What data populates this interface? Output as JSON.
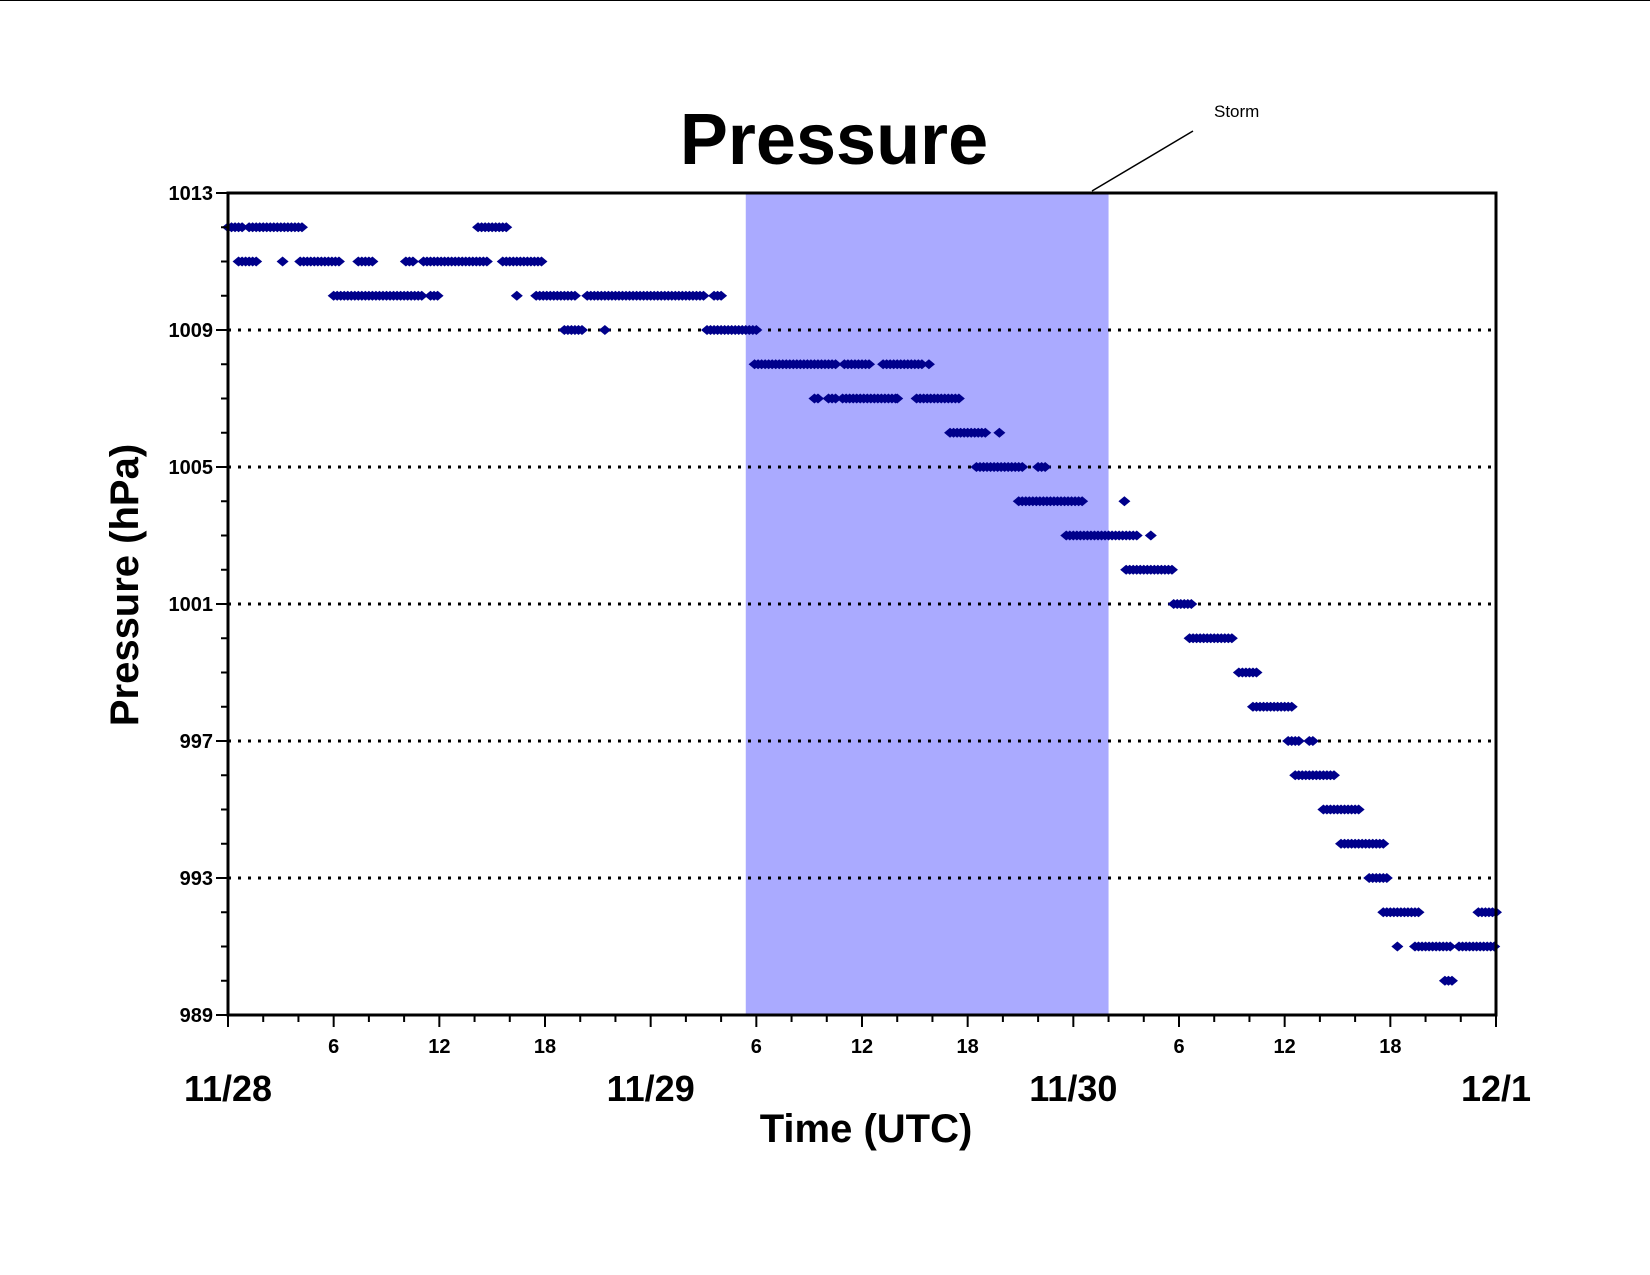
{
  "chart_data": {
    "type": "scatter",
    "title": "Pressure",
    "xlabel": "Time (UTC)",
    "ylabel": "Pressure (hPa)",
    "ylim": [
      989,
      1013
    ],
    "y_ticks": [
      "1013",
      "1009",
      "1005",
      "1001",
      "997",
      "993",
      "989"
    ],
    "xlim_hours": [
      0,
      72
    ],
    "x_hour_ticks": [
      {
        "h": 6,
        "label": "6"
      },
      {
        "h": 12,
        "label": "12"
      },
      {
        "h": 18,
        "label": "18"
      },
      {
        "h": 30,
        "label": "6"
      },
      {
        "h": 36,
        "label": "12"
      },
      {
        "h": 42,
        "label": "18"
      },
      {
        "h": 54,
        "label": "6"
      },
      {
        "h": 60,
        "label": "12"
      },
      {
        "h": 66,
        "label": "18"
      }
    ],
    "x_date_ticks": [
      {
        "h": 0,
        "label": "11/28"
      },
      {
        "h": 24,
        "label": "11/29"
      },
      {
        "h": 48,
        "label": "11/30"
      },
      {
        "h": 72,
        "label": "12/1"
      }
    ],
    "grid": "horizontal dotted",
    "marker_color": "#00008B",
    "highlight": {
      "label": "Storm",
      "start_hour": 29.4,
      "end_hour": 50.0,
      "color": "#AAAAFF"
    },
    "series": [
      {
        "segments": [
          {
            "y": 1012,
            "ranges": [
              [
                0,
                0.8
              ],
              [
                1.2,
                4.3
              ],
              [
                14.2,
                15.9
              ]
            ]
          },
          {
            "y": 1011,
            "ranges": [
              [
                0.6,
                1.7
              ],
              [
                3.1,
                3.1
              ],
              [
                4.1,
                6.3
              ],
              [
                7.4,
                8.2
              ],
              [
                10.1,
                10.5
              ],
              [
                11.1,
                14.7
              ],
              [
                15.6,
                17.8
              ]
            ]
          },
          {
            "y": 1010,
            "ranges": [
              [
                6.0,
                11.1
              ],
              [
                11.5,
                11.9
              ],
              [
                16.4,
                16.4
              ],
              [
                17.5,
                19.8
              ],
              [
                20.4,
                27.1
              ],
              [
                27.6,
                28.1
              ]
            ]
          },
          {
            "y": 1009,
            "ranges": [
              [
                19.1,
                20.1
              ],
              [
                21.4,
                21.4
              ],
              [
                27.2,
                30.1
              ]
            ]
          },
          {
            "y": 1008,
            "ranges": [
              [
                29.9,
                34.5
              ],
              [
                35.0,
                36.4
              ],
              [
                37.2,
                39.5
              ],
              [
                39.8,
                39.9
              ]
            ]
          },
          {
            "y": 1007,
            "ranges": [
              [
                33.3,
                33.6
              ],
              [
                34.1,
                34.5
              ],
              [
                34.9,
                37.9
              ],
              [
                38.0,
                38.0
              ],
              [
                39.1,
                41.6
              ]
            ]
          },
          {
            "y": 1006,
            "ranges": [
              [
                41.0,
                43.0
              ],
              [
                43.8,
                43.8
              ]
            ]
          },
          {
            "y": 1005,
            "ranges": [
              [
                42.5,
                45.1
              ],
              [
                46.0,
                46.5
              ]
            ]
          },
          {
            "y": 1004,
            "ranges": [
              [
                44.9,
                48.5
              ],
              [
                50.9,
                50.9
              ]
            ]
          },
          {
            "y": 1003,
            "ranges": [
              [
                47.6,
                51.7
              ],
              [
                52.4,
                52.4
              ]
            ]
          },
          {
            "y": 1002,
            "ranges": [
              [
                51.0,
                53.6
              ]
            ]
          },
          {
            "y": 1001,
            "ranges": [
              [
                53.7,
                54.7
              ]
            ]
          },
          {
            "y": 1000,
            "ranges": [
              [
                54.6,
                57.1
              ]
            ]
          },
          {
            "y": 999,
            "ranges": [
              [
                57.4,
                58.5
              ]
            ]
          },
          {
            "y": 998,
            "ranges": [
              [
                58.2,
                60.4
              ]
            ]
          },
          {
            "y": 997,
            "ranges": [
              [
                60.2,
                60.8
              ],
              [
                61.4,
                61.6
              ]
            ]
          },
          {
            "y": 996,
            "ranges": [
              [
                60.6,
                62.8
              ]
            ]
          },
          {
            "y": 995,
            "ranges": [
              [
                62.2,
                64.2
              ]
            ]
          },
          {
            "y": 994,
            "ranges": [
              [
                63.2,
                65.6
              ]
            ]
          },
          {
            "y": 993,
            "ranges": [
              [
                64.8,
                65.9
              ]
            ]
          },
          {
            "y": 992,
            "ranges": [
              [
                65.6,
                67.6
              ],
              [
                71.0,
                72.0
              ]
            ]
          },
          {
            "y": 991,
            "ranges": [
              [
                66.4,
                66.4
              ],
              [
                67.4,
                69.5
              ],
              [
                69.9,
                71.9
              ]
            ]
          },
          {
            "y": 990,
            "ranges": [
              [
                69.1,
                69.6
              ]
            ]
          }
        ]
      }
    ]
  }
}
